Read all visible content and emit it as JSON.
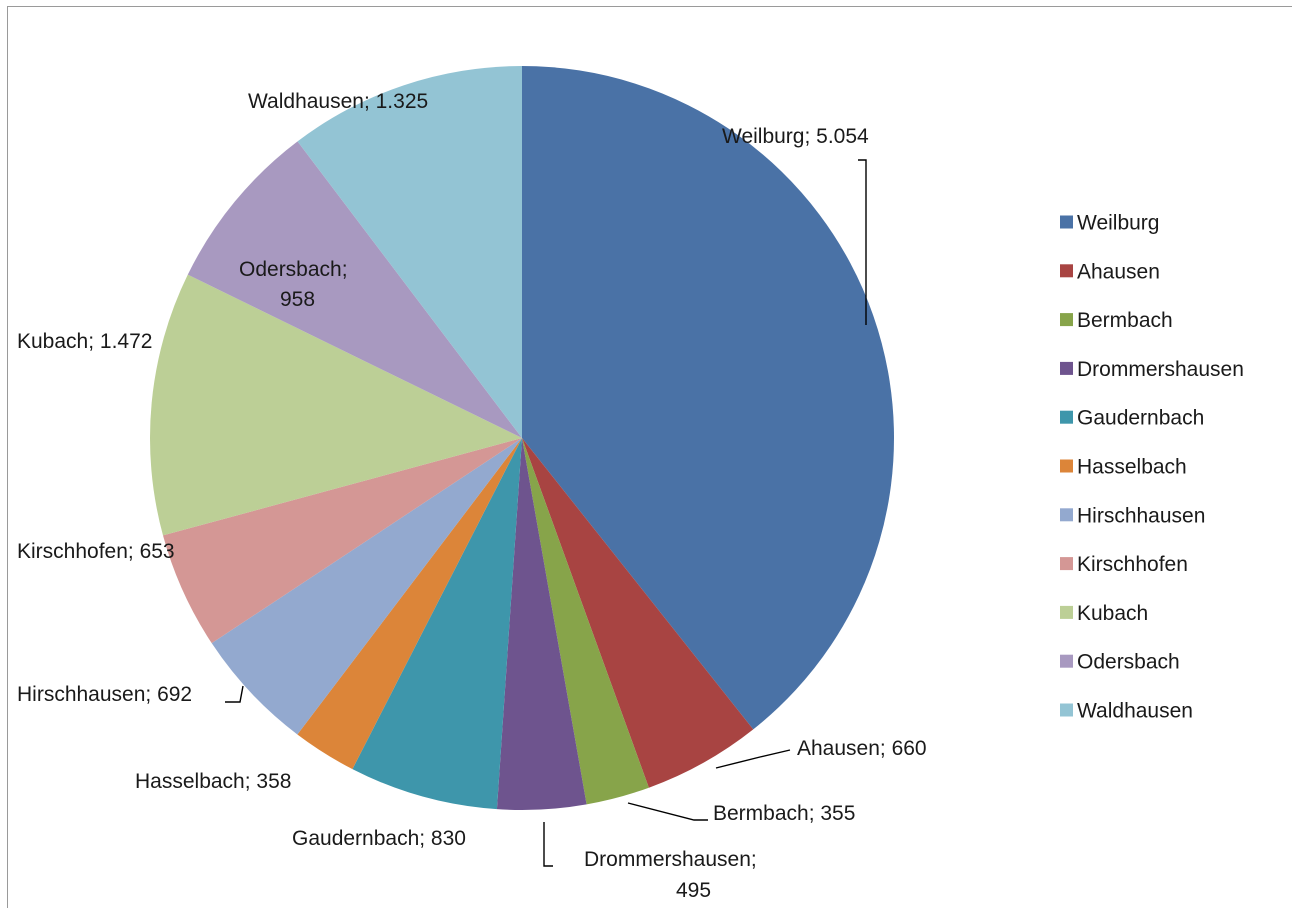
{
  "chart_data": {
    "type": "pie",
    "title": "",
    "legend_position": "right",
    "categories": [
      "Weilburg",
      "Ahausen",
      "Bermbach",
      "Drommershausen",
      "Gaudernbach",
      "Hasselbach",
      "Hirschhausen",
      "Kirschhofen",
      "Kubach",
      "Odersbach",
      "Waldhausen"
    ],
    "values": [
      5054,
      660,
      355,
      495,
      830,
      358,
      692,
      653,
      1472,
      958,
      1325
    ],
    "labels": [
      "Weilburg; 5.054",
      "Ahausen; 660",
      "Bermbach; 355",
      "Drommershausen; 495",
      "Gaudernbach; 830",
      "Hasselbach; 358",
      "Hirschhausen; 692",
      "Kirschhofen; 653",
      "Kubach; 1.472",
      "Odersbach; 958",
      "Waldhausen; 1.325"
    ],
    "colors": [
      "#4a72a6",
      "#a84442",
      "#87a44a",
      "#6e548e",
      "#3e96ab",
      "#dc8539",
      "#93a9cf",
      "#d49795",
      "#bccf96",
      "#a899c0",
      "#93c4d4"
    ]
  }
}
